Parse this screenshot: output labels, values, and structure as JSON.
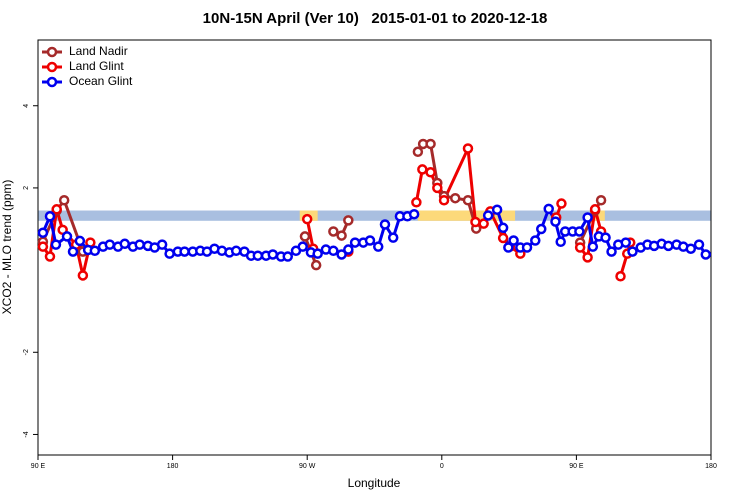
{
  "chart_data": {
    "type": "line",
    "title": "10N-15N April (Ver 10)   2015-01-01 to 2020-12-18",
    "x_label": "Longitude",
    "y_label": "XCO2 - MLO trend (ppm)",
    "xlim": [
      90,
      540
    ],
    "ylim": [
      -4.5,
      5.6
    ],
    "xticks": [
      {
        "value": 90,
        "label": "90 E"
      },
      {
        "value": 180,
        "label": "180"
      },
      {
        "value": 270,
        "label": "90 W"
      },
      {
        "value": 360,
        "label": "0"
      },
      {
        "value": 450,
        "label": "90 E"
      },
      {
        "value": 540,
        "label": "180"
      }
    ],
    "yticks": [
      -4,
      -2,
      2,
      4
    ],
    "legend": "top-left",
    "land_mask": {
      "y": [
        1.2,
        1.45
      ],
      "ocean_color": "#a9bfe0",
      "land_color": "#fcd97a",
      "land_spans": [
        [
          265,
          277
        ],
        [
          344,
          409
        ],
        [
          459,
          469
        ]
      ]
    },
    "series": [
      {
        "name": "Land Nadir",
        "color": "#a52a2a",
        "x": [
          93.3,
          102.5,
          107.5,
          120,
          null,
          268.5,
          276,
          null,
          287.5,
          293,
          297.5,
          null,
          344,
          347.5,
          352.5,
          357,
          361.5,
          369,
          377.5,
          383,
          392,
          null,
          452.5,
          462.5,
          466.5
        ],
        "values": [
          0.69,
          1.45,
          1.7,
          0.45,
          null,
          0.82,
          0.12,
          null,
          0.94,
          0.84,
          1.21,
          null,
          2.88,
          3.07,
          3.07,
          2.12,
          1.8,
          1.75,
          1.7,
          1.01,
          1.38,
          null,
          0.67,
          1.45,
          1.7
        ]
      },
      {
        "name": "Land Glint",
        "color": "#ee0000",
        "x": [
          93.3,
          98,
          102.5,
          106.5,
          115.5,
          120,
          125,
          null,
          270,
          274,
          null,
          297.5,
          null,
          343,
          347,
          352.5,
          357,
          361.5,
          377.5,
          382.5,
          388,
          392.5,
          401,
          405.5,
          412.5,
          null,
          436.5,
          440,
          null,
          452.5,
          457.5,
          462.5,
          466.5,
          null,
          479.5,
          484,
          486
        ],
        "values": [
          0.57,
          0.33,
          1.48,
          0.98,
          0.62,
          -0.13,
          0.67,
          null,
          1.24,
          0.52,
          null,
          0.45,
          null,
          1.65,
          2.45,
          2.38,
          2.0,
          1.7,
          2.96,
          1.17,
          1.13,
          1.43,
          0.78,
          0.57,
          0.4,
          null,
          1.28,
          1.62,
          null,
          0.55,
          0.31,
          1.48,
          0.94,
          null,
          -0.15,
          0.4,
          0.67
        ]
      },
      {
        "name": "Ocean Glint",
        "color": "#0000ee",
        "x": [
          93.3,
          98,
          102,
          109.4,
          113.4,
          118,
          123.5,
          128,
          133.5,
          138,
          143.5,
          148,
          153.5,
          158,
          163.5,
          168,
          173,
          178,
          183.5,
          188,
          193.5,
          198.5,
          203,
          208,
          213,
          218,
          222.5,
          228,
          232.5,
          237,
          242.5,
          247,
          252.5,
          257,
          262.5,
          267,
          272.5,
          277,
          282.5,
          287.5,
          293,
          297.5,
          302,
          307.5,
          312,
          317.5,
          322,
          327.5,
          332,
          337,
          341.5,
          null,
          391,
          397,
          401,
          404.5,
          408,
          412.5,
          417,
          422.5,
          426.5,
          431.5,
          436,
          439.5,
          442.5,
          447.5,
          452,
          457.5,
          461,
          465,
          469.5,
          473.5,
          478,
          483,
          487.5,
          493,
          497.5,
          502,
          507,
          511.5,
          517,
          521.5,
          526.5,
          532,
          536.5
        ],
        "values": [
          0.91,
          1.31,
          0.62,
          0.82,
          0.45,
          0.71,
          0.49,
          0.47,
          0.57,
          0.62,
          0.57,
          0.64,
          0.57,
          0.62,
          0.59,
          0.55,
          0.62,
          0.4,
          0.45,
          0.45,
          0.45,
          0.47,
          0.45,
          0.52,
          0.47,
          0.43,
          0.47,
          0.45,
          0.35,
          0.35,
          0.35,
          0.38,
          0.33,
          0.33,
          0.47,
          0.57,
          0.43,
          0.4,
          0.5,
          0.47,
          0.38,
          0.5,
          0.67,
          0.67,
          0.72,
          0.57,
          1.11,
          0.79,
          1.31,
          1.31,
          1.36,
          null,
          1.33,
          1.47,
          1.03,
          0.55,
          0.72,
          0.55,
          0.55,
          0.72,
          1.0,
          1.49,
          1.18,
          0.69,
          0.94,
          0.94,
          0.94,
          1.28,
          0.57,
          0.82,
          0.79,
          0.45,
          0.62,
          0.67,
          0.45,
          0.55,
          0.62,
          0.59,
          0.64,
          0.59,
          0.62,
          0.57,
          0.52,
          0.62,
          0.38
        ]
      }
    ]
  }
}
